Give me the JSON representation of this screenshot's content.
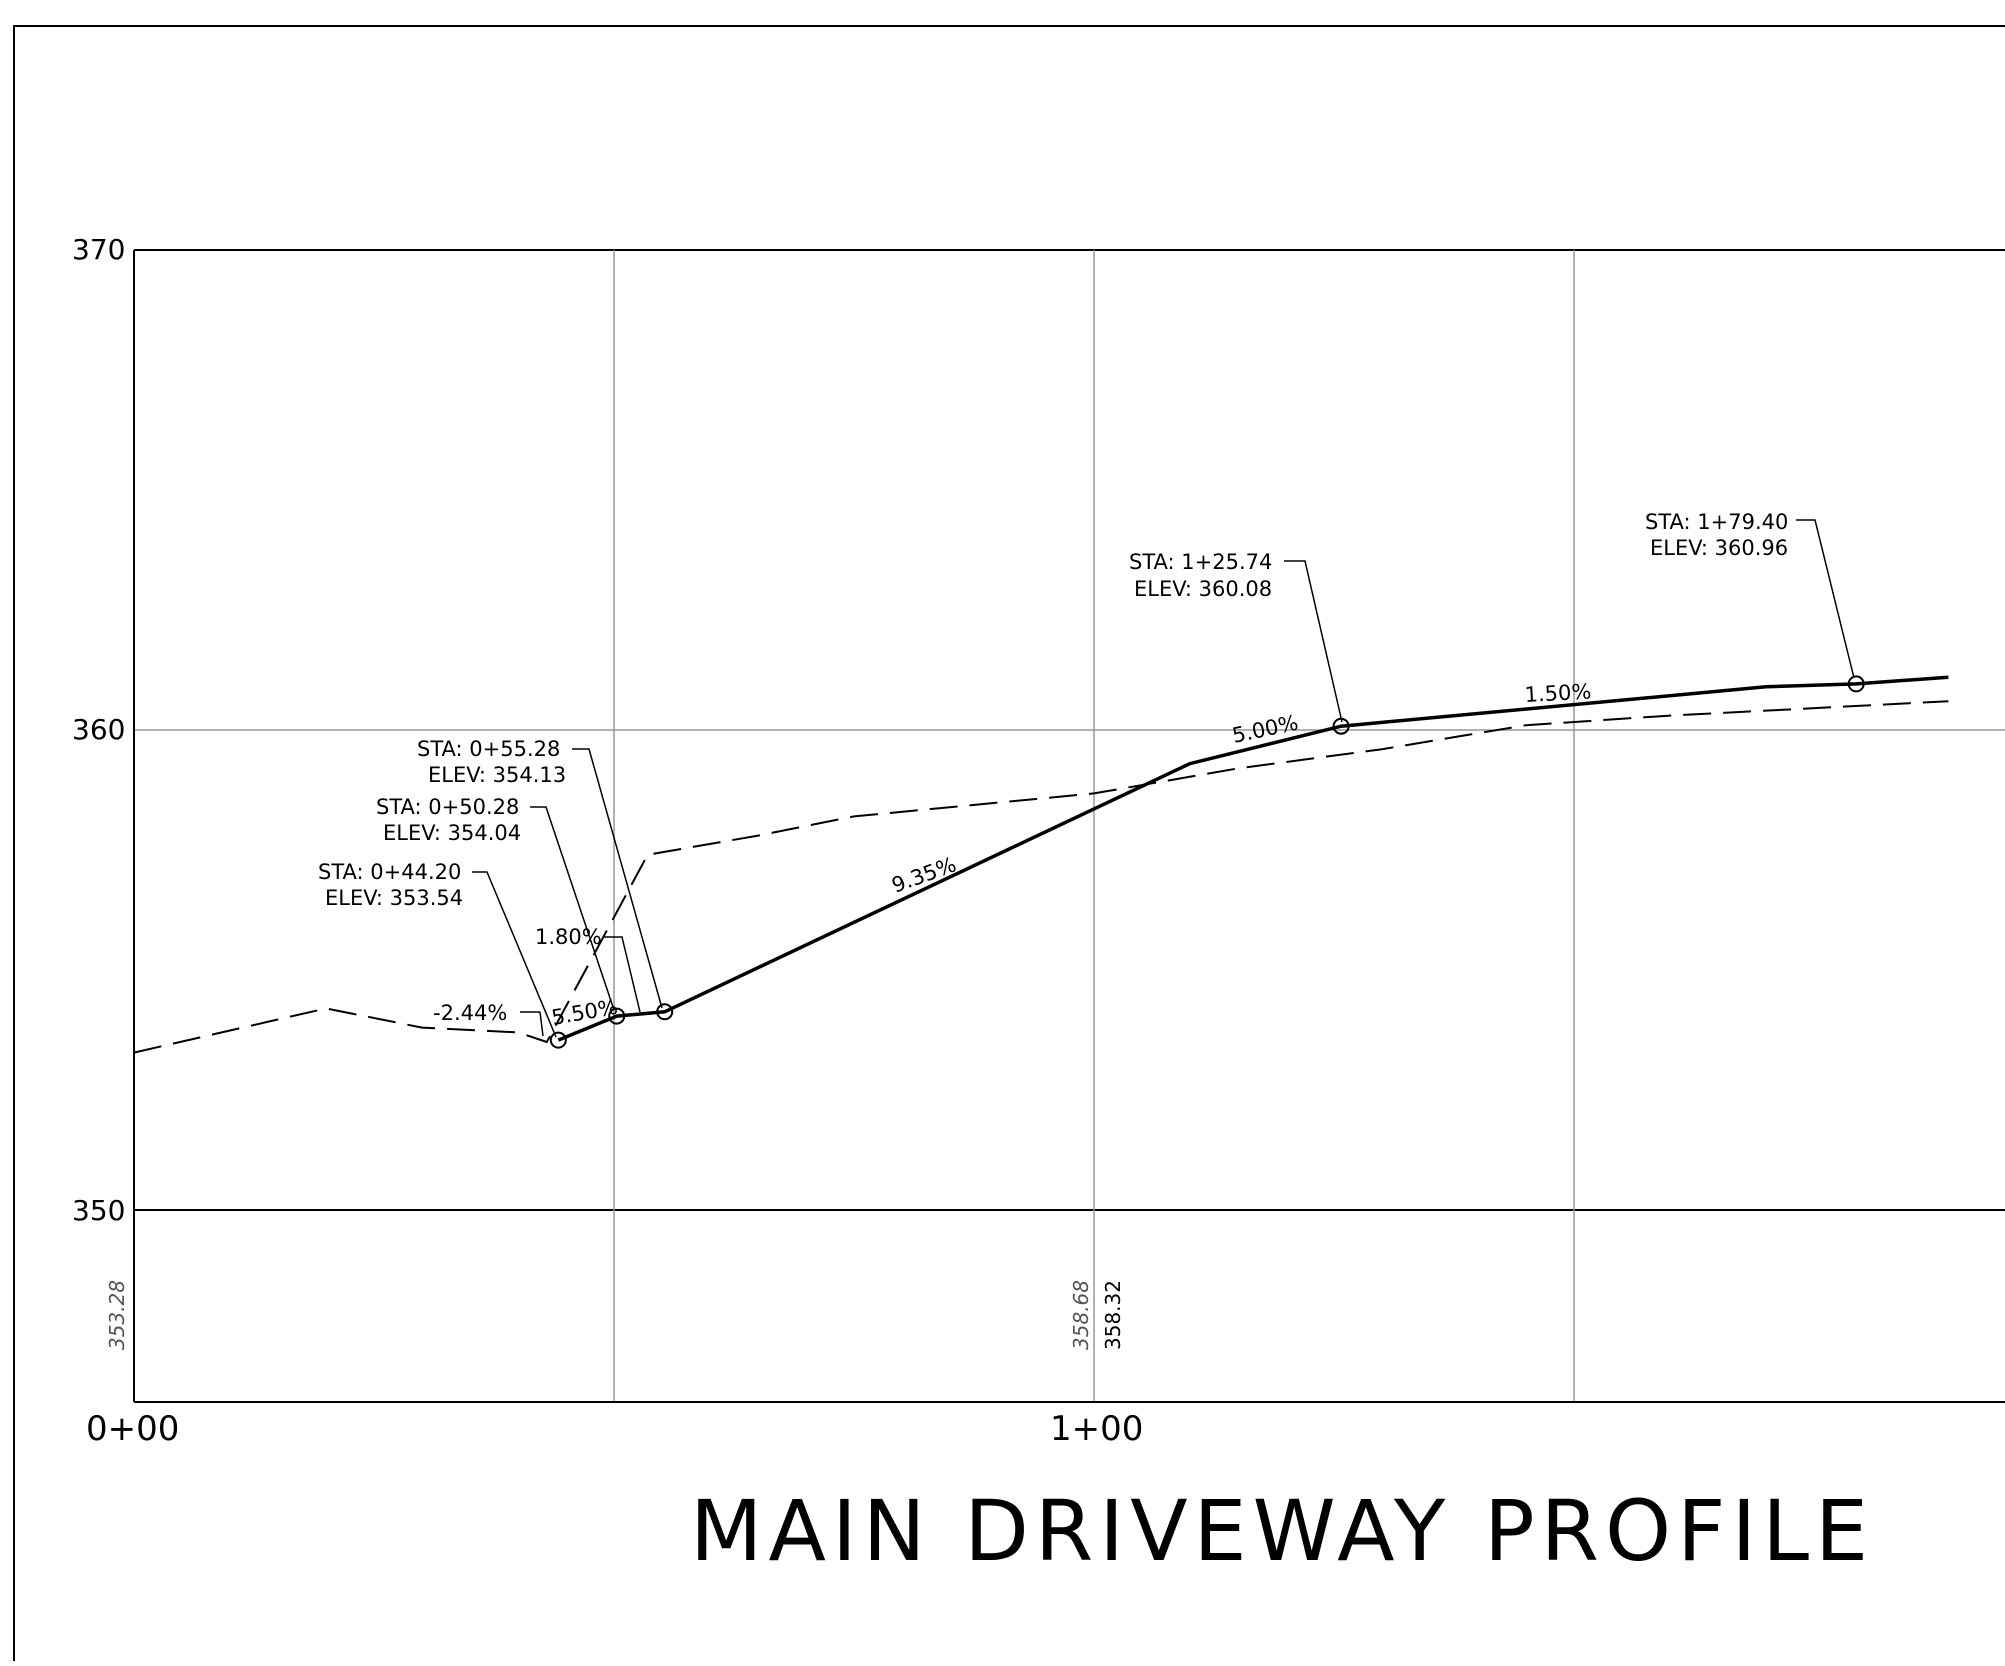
{
  "chart_data": {
    "type": "line",
    "title": "MAIN DRIVEWAY PROFILE",
    "y_ticks": [
      "370",
      "360",
      "350"
    ],
    "x_ticks": [
      "0+00",
      "1+00"
    ],
    "ylim": [
      346,
      370
    ],
    "xlim": [
      0,
      189
    ],
    "grid": true,
    "series": [
      {
        "style": "solid-heavy",
        "points": [
          [
            44.2,
            353.54
          ],
          [
            50.28,
            354.04
          ],
          [
            55.28,
            354.13
          ],
          [
            110,
            359.3
          ],
          [
            125.74,
            360.08
          ],
          [
            170,
            360.9
          ],
          [
            179.4,
            360.96
          ],
          [
            189,
            361.1
          ]
        ]
      },
      {
        "style": "dashed",
        "points": [
          [
            0,
            353.28
          ],
          [
            20,
            354.2
          ],
          [
            30,
            353.8
          ],
          [
            40,
            353.7
          ],
          [
            43,
            353.5
          ],
          [
            53.5,
            357.4
          ],
          [
            65,
            357.8
          ],
          [
            75,
            358.2
          ],
          [
            100,
            358.68
          ],
          [
            115,
            359.2
          ],
          [
            130,
            359.6
          ],
          [
            145,
            360.1
          ],
          [
            160,
            360.3
          ],
          [
            189,
            360.6
          ]
        ]
      }
    ],
    "annotations": {
      "pvi": [
        {
          "sta": "STA: 0+44.20",
          "elev": "ELEV: 353.54"
        },
        {
          "sta": "STA: 0+50.28",
          "elev": "ELEV: 354.04"
        },
        {
          "sta": "STA: 0+55.28",
          "elev": "ELEV: 354.13"
        },
        {
          "sta": "STA: 1+25.74",
          "elev": "ELEV: 360.08"
        },
        {
          "sta": "STA: 1+79.40",
          "elev": "ELEV: 360.96"
        }
      ],
      "grades": [
        "-2.44%",
        "5.50%",
        "1.80%",
        "9.35%",
        "5.00%",
        "1.50%"
      ]
    },
    "station_elevations": [
      {
        "station": "0+00",
        "existing": "353.28"
      },
      {
        "station": "1+00",
        "existing": "358.68",
        "proposed": "358.32"
      }
    ]
  }
}
